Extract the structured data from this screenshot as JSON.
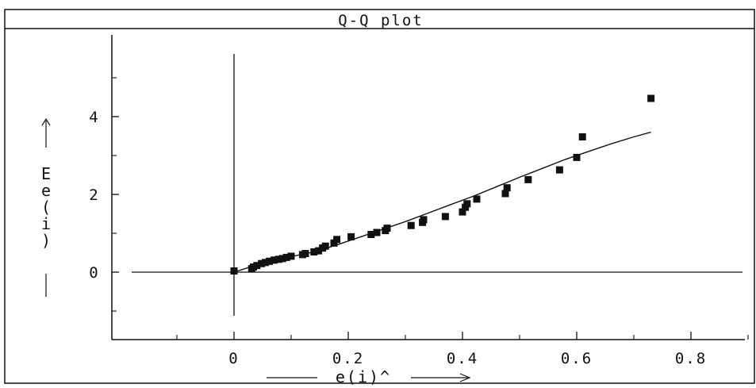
{
  "title": "Q-Q plot",
  "xlabel": "e(i)^",
  "ylabel_chars": [
    "E",
    "e",
    "(",
    "i",
    ")"
  ],
  "colors": {
    "ink": "#111111",
    "background": "#ffffff"
  },
  "chart_data": {
    "type": "scatter",
    "title": "Q-Q plot",
    "xlabel": "e(i)^",
    "ylabel": "Ee(i)",
    "xlim": [
      -0.2,
      0.9
    ],
    "ylim": [
      -1.7,
      6.1
    ],
    "x_ticks": [
      {
        "v": 0,
        "label": "0"
      },
      {
        "v": 0.2,
        "label": "0.2"
      },
      {
        "v": 0.4,
        "label": "0.4"
      },
      {
        "v": 0.6,
        "label": "0.6"
      },
      {
        "v": 0.8,
        "label": "0.8"
      }
    ],
    "x_minor_ticks": [
      -0.1,
      0.1,
      0.3,
      0.5,
      0.7,
      0.9
    ],
    "y_ticks": [
      {
        "v": 0,
        "label": "0"
      },
      {
        "v": 2,
        "label": "2"
      },
      {
        "v": 4,
        "label": "4"
      }
    ],
    "y_minor_ticks": [
      -1,
      1,
      3,
      5
    ],
    "grid": false,
    "points": [
      [
        0.0,
        0.03
      ],
      [
        0.031,
        0.09
      ],
      [
        0.034,
        0.13
      ],
      [
        0.04,
        0.17
      ],
      [
        0.048,
        0.22
      ],
      [
        0.055,
        0.25
      ],
      [
        0.062,
        0.28
      ],
      [
        0.07,
        0.31
      ],
      [
        0.078,
        0.33
      ],
      [
        0.085,
        0.35
      ],
      [
        0.092,
        0.38
      ],
      [
        0.1,
        0.41
      ],
      [
        0.12,
        0.45
      ],
      [
        0.125,
        0.48
      ],
      [
        0.14,
        0.52
      ],
      [
        0.148,
        0.55
      ],
      [
        0.155,
        0.62
      ],
      [
        0.16,
        0.67
      ],
      [
        0.175,
        0.75
      ],
      [
        0.18,
        0.84
      ],
      [
        0.205,
        0.91
      ],
      [
        0.24,
        0.97
      ],
      [
        0.25,
        1.02
      ],
      [
        0.265,
        1.07
      ],
      [
        0.268,
        1.13
      ],
      [
        0.31,
        1.2
      ],
      [
        0.33,
        1.28
      ],
      [
        0.332,
        1.35
      ],
      [
        0.37,
        1.43
      ],
      [
        0.4,
        1.55
      ],
      [
        0.405,
        1.67
      ],
      [
        0.408,
        1.76
      ],
      [
        0.425,
        1.88
      ],
      [
        0.475,
        2.02
      ],
      [
        0.478,
        2.17
      ],
      [
        0.515,
        2.38
      ],
      [
        0.57,
        2.63
      ],
      [
        0.6,
        2.95
      ],
      [
        0.61,
        3.48
      ],
      [
        0.73,
        4.47
      ]
    ],
    "fit_line": [
      [
        0.0,
        0.0
      ],
      [
        0.03,
        0.14
      ],
      [
        0.06,
        0.26
      ],
      [
        0.1,
        0.4
      ],
      [
        0.14,
        0.52
      ],
      [
        0.18,
        0.7
      ],
      [
        0.22,
        0.9
      ],
      [
        0.26,
        1.1
      ],
      [
        0.3,
        1.3
      ],
      [
        0.34,
        1.52
      ],
      [
        0.38,
        1.74
      ],
      [
        0.42,
        1.96
      ],
      [
        0.46,
        2.2
      ],
      [
        0.5,
        2.44
      ],
      [
        0.54,
        2.67
      ],
      [
        0.58,
        2.9
      ],
      [
        0.62,
        3.1
      ],
      [
        0.66,
        3.3
      ],
      [
        0.7,
        3.48
      ],
      [
        0.73,
        3.6
      ]
    ]
  }
}
